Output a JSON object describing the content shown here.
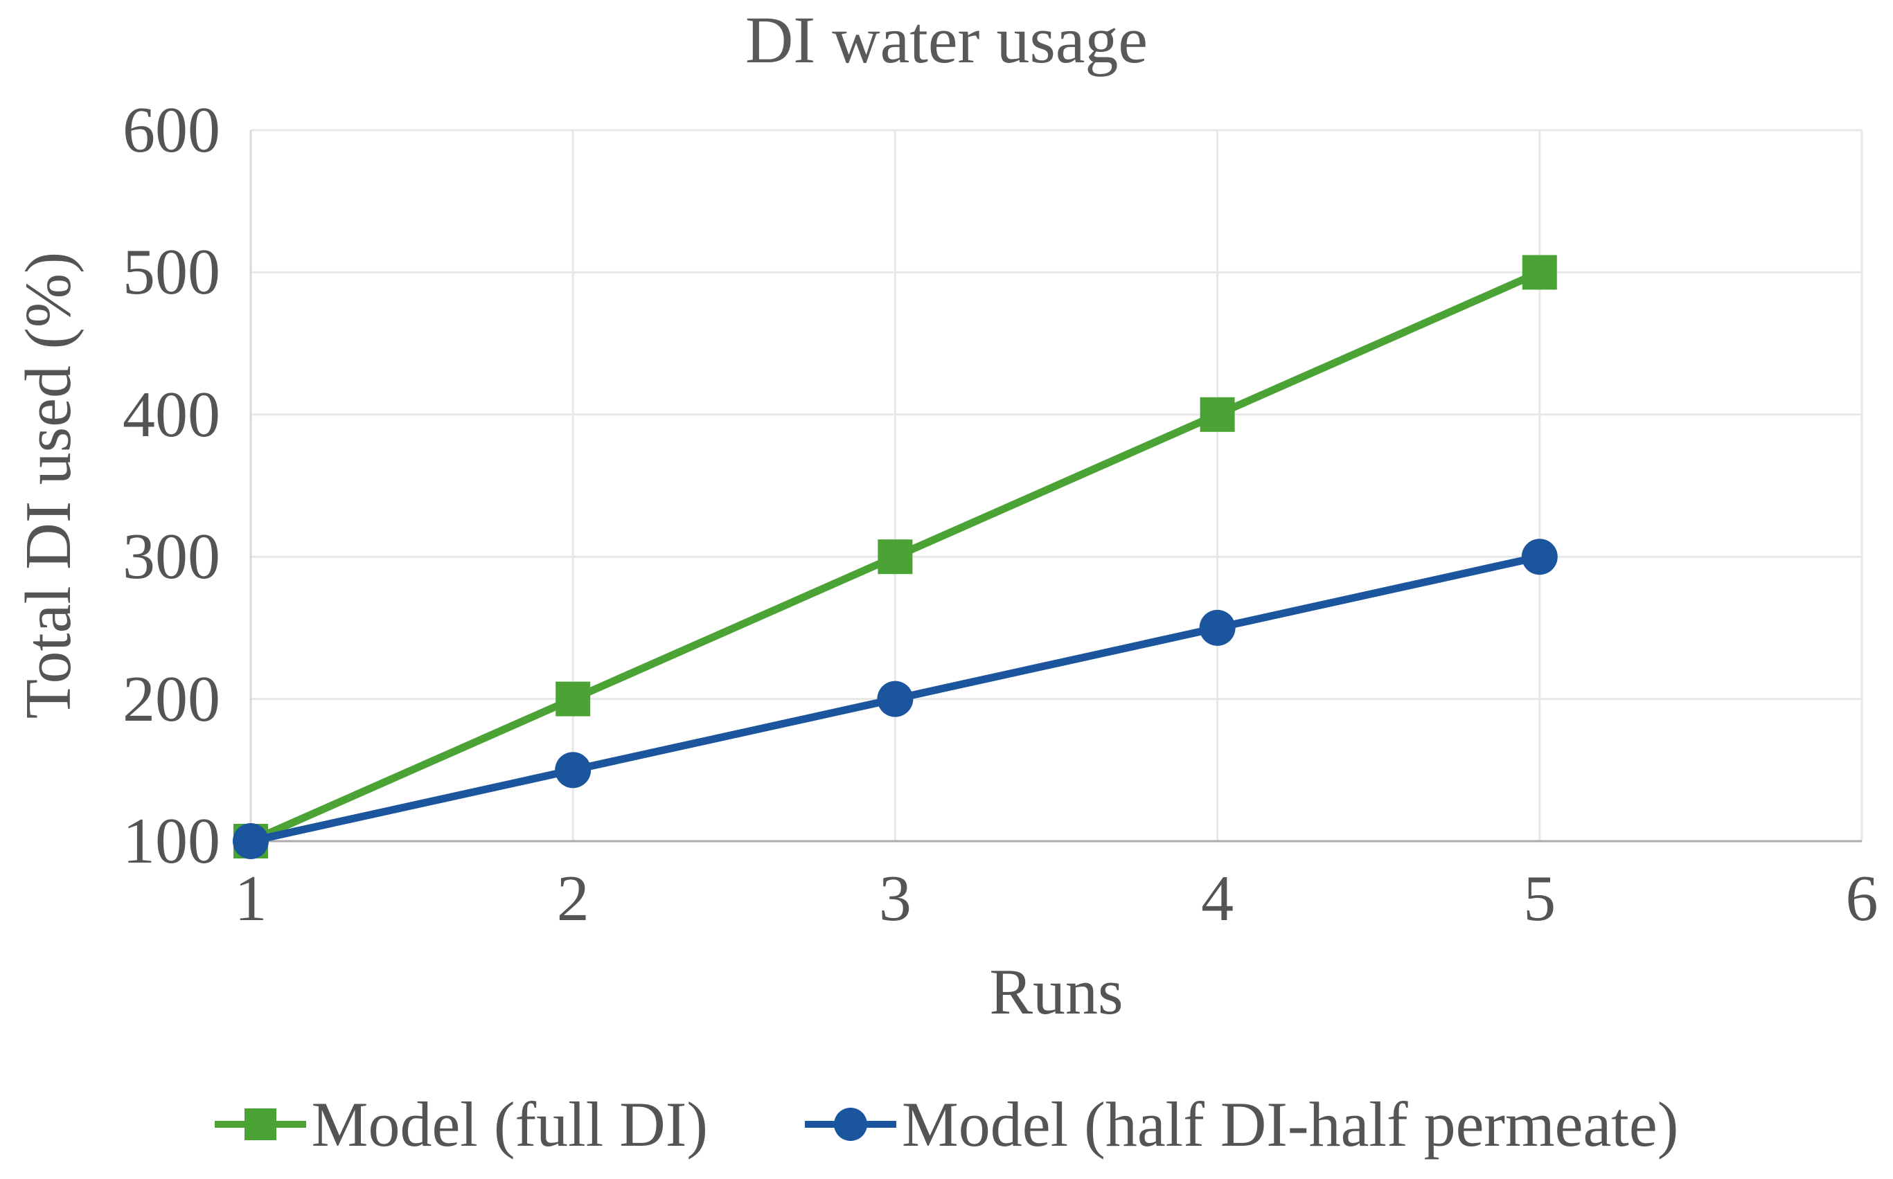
{
  "chart_data": {
    "type": "line",
    "title": "DI water usage",
    "xlabel": "Runs",
    "ylabel": "Total DI used (%)",
    "x": [
      1,
      2,
      3,
      4,
      5
    ],
    "series": [
      {
        "name": "Model (full DI)",
        "marker": "square",
        "color": "#4AA334",
        "values": [
          100,
          200,
          300,
          400,
          500
        ]
      },
      {
        "name": "Model (half DI-half permeate)",
        "marker": "circle",
        "color": "#1A559E",
        "values": [
          100,
          150,
          200,
          250,
          300
        ]
      }
    ],
    "xlim": [
      1,
      6
    ],
    "ylim": [
      100,
      600
    ],
    "xticks": [
      1,
      2,
      3,
      4,
      5,
      6
    ],
    "yticks": [
      100,
      200,
      300,
      400,
      500,
      600
    ],
    "grid": true,
    "legend_position": "bottom",
    "grid_color": "#E7E7E7",
    "bottom_axis_color": "#ACACAC",
    "left_axis_color": "#D9D9D9",
    "text_color": "#545454",
    "title_color": "#595959"
  }
}
